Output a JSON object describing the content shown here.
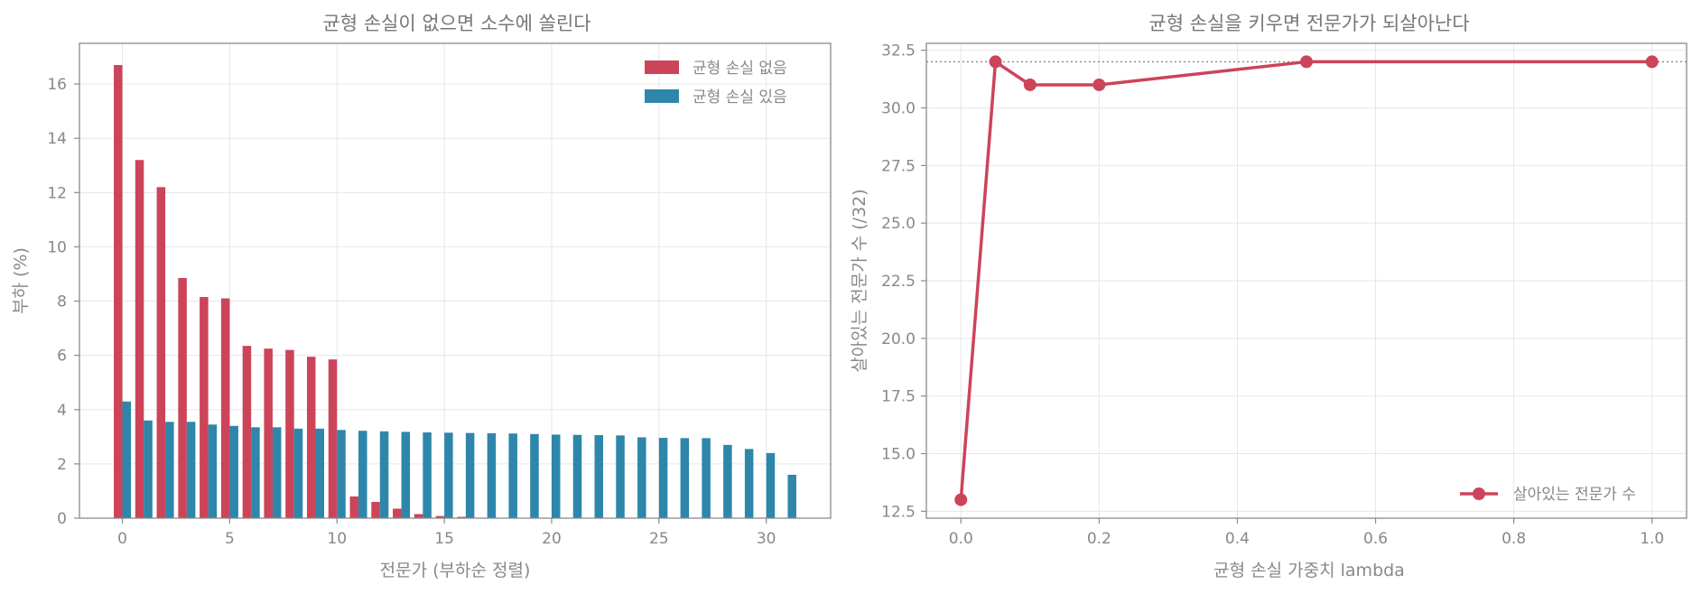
{
  "colors": {
    "red": "#CC4459",
    "blue": "#2E86AB",
    "text": "#888888",
    "ref_line": "#888888"
  },
  "chart_data": [
    {
      "type": "bar",
      "title": "균형 손실이 없으면 소수에 쏠린다",
      "xlabel": "전문가 (부하순 정렬)",
      "ylabel": "부하 (%)",
      "xlim": [
        -2,
        33
      ],
      "ylim": [
        0,
        17.5
      ],
      "xticks": [
        0,
        5,
        10,
        15,
        20,
        25,
        30
      ],
      "yticks": [
        0,
        2,
        4,
        6,
        8,
        10,
        12,
        14,
        16
      ],
      "grid": true,
      "legend_position": "top-right",
      "categories": [
        0,
        1,
        2,
        3,
        4,
        5,
        6,
        7,
        8,
        9,
        10,
        11,
        12,
        13,
        14,
        15,
        16,
        17,
        18,
        19,
        20,
        21,
        22,
        23,
        24,
        25,
        26,
        27,
        28,
        29,
        30,
        31
      ],
      "series": [
        {
          "name": "균형 손실 없음",
          "color": "#CC4459",
          "values": [
            16.7,
            13.2,
            12.2,
            8.85,
            8.15,
            8.1,
            6.35,
            6.25,
            6.2,
            5.95,
            5.85,
            0.8,
            0.6,
            0.35,
            0.15,
            0.08,
            0.05,
            0,
            0,
            0,
            0,
            0,
            0,
            0,
            0,
            0,
            0,
            0,
            0,
            0,
            0,
            0
          ]
        },
        {
          "name": "균형 손실 있음",
          "color": "#2E86AB",
          "values": [
            4.3,
            3.6,
            3.55,
            3.55,
            3.45,
            3.4,
            3.35,
            3.35,
            3.3,
            3.3,
            3.25,
            3.22,
            3.2,
            3.18,
            3.16,
            3.15,
            3.14,
            3.13,
            3.12,
            3.1,
            3.08,
            3.07,
            3.06,
            3.05,
            2.98,
            2.96,
            2.95,
            2.95,
            2.7,
            2.55,
            2.4,
            1.6
          ]
        }
      ]
    },
    {
      "type": "line",
      "title": "균형 손실을 키우면 전문가가 되살아난다",
      "xlabel": "균형 손실 가중치 lambda",
      "ylabel": "살아있는 전문가 수 (/32)",
      "xlim": [
        -0.05,
        1.05
      ],
      "ylim": [
        12.2,
        32.8
      ],
      "xticks": [
        0.0,
        0.2,
        0.4,
        0.6,
        0.8,
        1.0
      ],
      "yticks": [
        12.5,
        15.0,
        17.5,
        20.0,
        22.5,
        25.0,
        27.5,
        30.0,
        32.5
      ],
      "xtick_labels": [
        "0.0",
        "0.2",
        "0.4",
        "0.6",
        "0.8",
        "1.0"
      ],
      "ytick_labels": [
        "12.5",
        "15.0",
        "17.5",
        "20.0",
        "22.5",
        "25.0",
        "27.5",
        "30.0",
        "32.5"
      ],
      "grid": true,
      "legend_position": "bottom-right",
      "reference_line_y": 32,
      "series": [
        {
          "name": "살아있는 전문가 수",
          "color": "#CC4459",
          "x": [
            0.0,
            0.05,
            0.1,
            0.2,
            0.5,
            1.0
          ],
          "y": [
            13,
            32,
            31,
            31,
            32,
            32
          ]
        }
      ]
    }
  ]
}
